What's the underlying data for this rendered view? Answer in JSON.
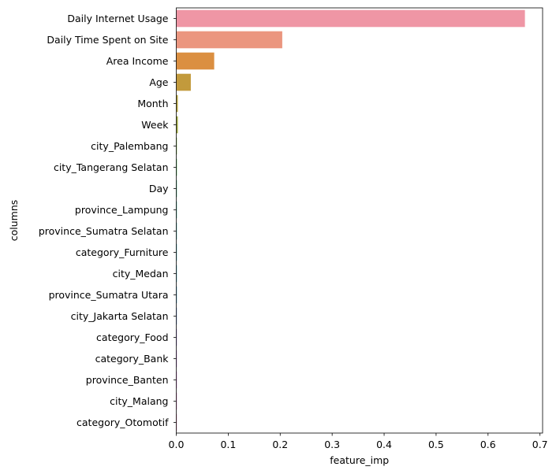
{
  "chart_data": {
    "type": "bar",
    "orientation": "horizontal",
    "title": "",
    "xlabel": "feature_imp",
    "ylabel": "columns",
    "xlim": [
      0,
      0.705
    ],
    "xticks": [
      0.0,
      0.1,
      0.2,
      0.3,
      0.4,
      0.5,
      0.6,
      0.7
    ],
    "xtick_labels": [
      "0.0",
      "0.1",
      "0.2",
      "0.3",
      "0.4",
      "0.5",
      "0.6",
      "0.7"
    ],
    "grid": false,
    "legend": "none",
    "categories": [
      "Daily Internet Usage",
      "Daily Time Spent on Site",
      "Area Income",
      "Age",
      "Month",
      "Week",
      "city_Palembang",
      "city_Tangerang Selatan",
      "Day",
      "province_Lampung",
      "province_Sumatra Selatan",
      "category_Furniture",
      "city_Medan",
      "province_Sumatra Utara",
      "city_Jakarta Selatan",
      "category_Food",
      "category_Bank",
      "province_Banten",
      "city_Malang",
      "category_Otomotif"
    ],
    "values": [
      0.671,
      0.204,
      0.073,
      0.028,
      0.003,
      0.003,
      0.001,
      0.001,
      0.0008,
      0.0006,
      0.0005,
      0.0004,
      0.0004,
      0.0003,
      0.0003,
      0.0002,
      0.0002,
      0.0002,
      0.0001,
      0.0001
    ],
    "colors": [
      "#ef96a5",
      "#eb967f",
      "#db8f41",
      "#c29a3c",
      "#b2a03b",
      "#9ba53a",
      "#6fab3a",
      "#3ab345",
      "#3aae7b",
      "#3bab93",
      "#3ca9a4",
      "#3da7b3",
      "#3fa5c3",
      "#44a0d8",
      "#759be8",
      "#a48ef0",
      "#c885f1",
      "#e57ce9",
      "#ee7fcc",
      "#f08ab4"
    ]
  }
}
